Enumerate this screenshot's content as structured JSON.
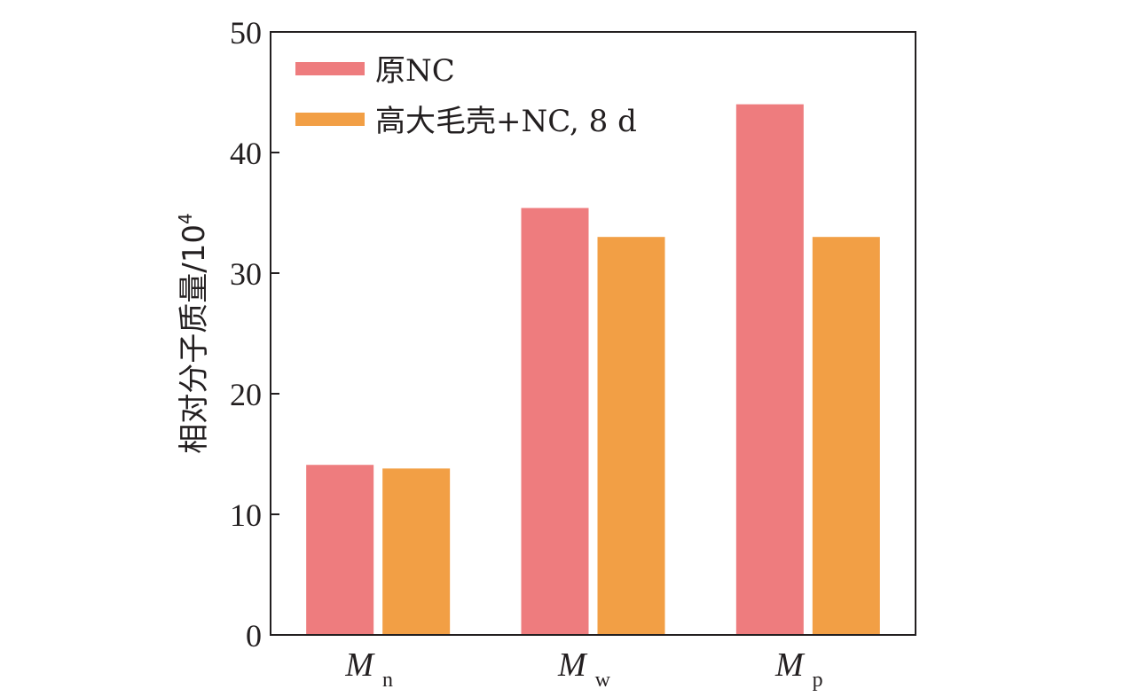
{
  "chart_data": {
    "type": "bar",
    "categories": [
      {
        "main": "M",
        "sub": "n"
      },
      {
        "main": "M",
        "sub": "w"
      },
      {
        "main": "M",
        "sub": "p"
      }
    ],
    "series": [
      {
        "name": "原NC",
        "color": "#ee7c7e",
        "values": [
          14.1,
          35.4,
          44.0
        ]
      },
      {
        "name": "高大毛壳+NC, 8 d",
        "color": "#f29f45",
        "values": [
          13.8,
          33.0,
          33.0
        ]
      }
    ],
    "ylabel": "相对分子质量/10",
    "ylabel_sup": "4",
    "ylim": [
      0,
      50
    ],
    "yticks": [
      "0",
      "10",
      "20",
      "30",
      "40",
      "50"
    ],
    "legend_position": "top-left",
    "grid": false
  }
}
